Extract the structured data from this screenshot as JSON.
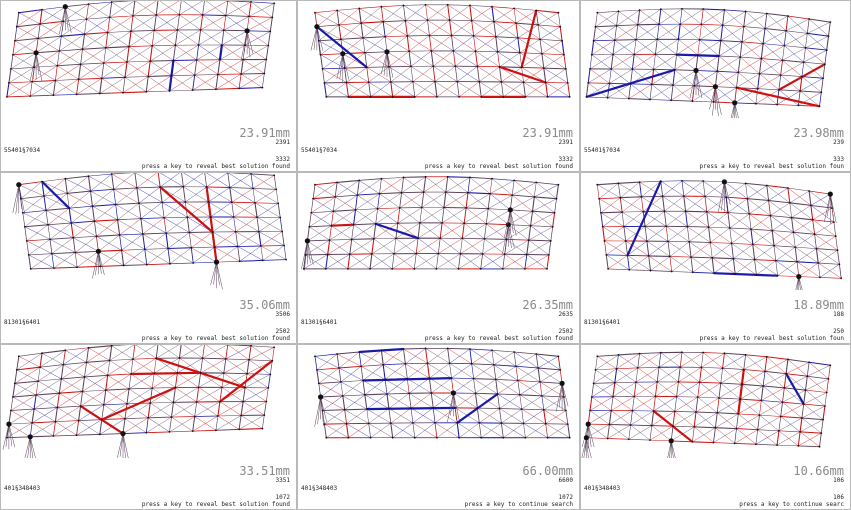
{
  "panels": [
    {
      "displacement": "23.91mm",
      "top_count": "2391",
      "seed": "55401§7034",
      "bottom_count": "3332",
      "prompt": "press a key to reveal best solution found",
      "stroke": "mixed-red"
    },
    {
      "displacement": "23.91mm",
      "top_count": "2391",
      "seed": "55401§7034",
      "bottom_count": "3332",
      "prompt": "press a key to reveal best solution found",
      "stroke": "mixed-red"
    },
    {
      "displacement": "23.98mm",
      "top_count": "239",
      "seed": "55401§7034",
      "bottom_count": "333",
      "prompt": "press a key to reveal best solution foun",
      "stroke": "mixed-blue"
    },
    {
      "displacement": "35.06mm",
      "top_count": "3506",
      "seed": "81301§6401",
      "bottom_count": "2502",
      "prompt": "press a key to reveal best solution found",
      "stroke": "mixed-blue"
    },
    {
      "displacement": "26.35mm",
      "top_count": "2635",
      "seed": "81301§6401",
      "bottom_count": "2502",
      "prompt": "press a key to reveal best solution found",
      "stroke": "mixed"
    },
    {
      "displacement": "18.89mm",
      "top_count": "188",
      "seed": "81301§6401",
      "bottom_count": "250",
      "prompt": "press a key to reveal best solution foun",
      "stroke": "mixed"
    },
    {
      "displacement": "33.51mm",
      "top_count": "3351",
      "seed": "401§348403",
      "bottom_count": "1072",
      "prompt": "press a key to reveal best solution found",
      "stroke": "mixed-red"
    },
    {
      "displacement": "66.00mm",
      "top_count": "6600",
      "seed": "401§348403",
      "bottom_count": "1072",
      "prompt": "press a key to continue search",
      "stroke": "mixed-blue"
    },
    {
      "displacement": "10.66mm",
      "top_count": "106",
      "seed": "401§348403",
      "bottom_count": "106",
      "prompt": "press a key to continue searc",
      "stroke": "mixed-red"
    }
  ],
  "colors": {
    "tension": "#cc1111",
    "compression": "#1a1aaa",
    "member": "#5a3f5a",
    "node": "#111111",
    "border": "#b9b9b9",
    "readout": "#8a8a8a"
  }
}
